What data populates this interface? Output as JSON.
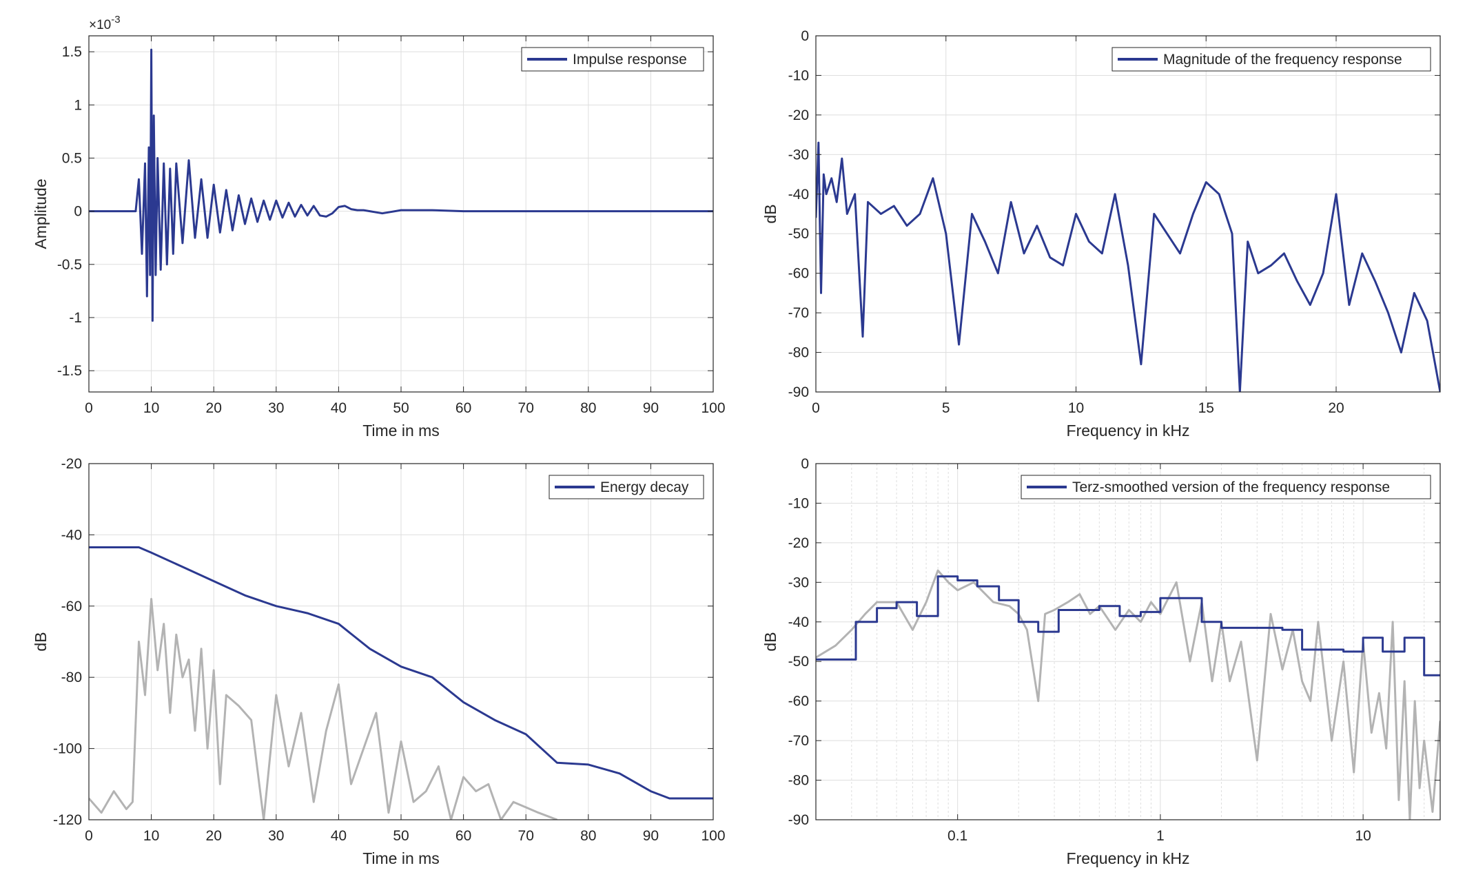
{
  "figure": {
    "colors": {
      "series": "#2b3990",
      "secondary": "#b3b3b3",
      "axis": "#262626",
      "grid": "#dedede"
    }
  },
  "chart_data": [
    {
      "type": "line",
      "title": "",
      "xlabel": "Time in ms",
      "ylabel": "Amplitude",
      "xlim": [
        0,
        100
      ],
      "ylim": [
        -1.7,
        1.65
      ],
      "x_ticks": [
        0,
        10,
        20,
        30,
        40,
        50,
        60,
        70,
        80,
        90,
        100
      ],
      "y_ticks": [
        -1.5,
        -1,
        -0.5,
        0,
        0.5,
        1,
        1.5
      ],
      "y_exponent_label": "×10",
      "y_exponent_power": "-3",
      "legend": {
        "position": "top-right",
        "entries": [
          "Impulse response"
        ]
      },
      "grid": true,
      "series": [
        {
          "name": "Impulse response",
          "x": [
            0,
            7.5,
            8,
            8.5,
            9,
            9.3,
            9.6,
            9.8,
            10,
            10.2,
            10.4,
            10.7,
            11,
            11.5,
            12,
            12.5,
            13,
            13.5,
            14,
            15,
            16,
            17,
            18,
            19,
            20,
            21,
            22,
            23,
            24,
            25,
            26,
            27,
            28,
            29,
            30,
            31,
            32,
            33,
            34,
            35,
            36,
            37,
            38,
            39,
            40,
            41,
            42,
            43,
            44,
            45,
            46,
            47,
            48,
            50,
            55,
            60,
            70,
            100
          ],
          "y": [
            0,
            0,
            0.3,
            -0.4,
            0.45,
            -0.8,
            0.6,
            -0.6,
            1.52,
            -1.03,
            0.9,
            -0.6,
            0.5,
            -0.55,
            0.45,
            -0.5,
            0.4,
            -0.4,
            0.45,
            -0.3,
            0.48,
            -0.25,
            0.3,
            -0.25,
            0.25,
            -0.2,
            0.2,
            -0.18,
            0.15,
            -0.12,
            0.12,
            -0.1,
            0.1,
            -0.08,
            0.1,
            -0.06,
            0.08,
            -0.05,
            0.06,
            -0.04,
            0.05,
            -0.04,
            -0.05,
            -0.02,
            0.04,
            0.05,
            0.02,
            0.01,
            0.01,
            0,
            -0.01,
            -0.02,
            -0.01,
            0.01,
            0.01,
            0,
            0,
            0
          ]
        }
      ]
    },
    {
      "type": "line",
      "title": "",
      "xlabel": "Frequency in kHz",
      "ylabel": "dB",
      "xlim": [
        0,
        24
      ],
      "ylim": [
        -90,
        0
      ],
      "x_ticks": [
        0,
        5,
        10,
        15,
        20
      ],
      "y_ticks": [
        0,
        -10,
        -20,
        -30,
        -40,
        -50,
        -60,
        -70,
        -80,
        -90
      ],
      "legend": {
        "position": "top-right",
        "entries": [
          "Magnitude of the frequency response"
        ]
      },
      "grid": true,
      "series": [
        {
          "name": "Magnitude of the frequency response",
          "x": [
            0,
            0.1,
            0.2,
            0.3,
            0.4,
            0.6,
            0.8,
            1,
            1.2,
            1.5,
            1.8,
            2,
            2.5,
            3,
            3.5,
            4,
            4.5,
            5,
            5.5,
            6,
            6.5,
            7,
            7.5,
            8,
            8.5,
            9,
            9.5,
            10,
            10.5,
            11,
            11.5,
            12,
            12.5,
            13,
            13.5,
            14,
            14.5,
            15,
            15.5,
            16,
            16.3,
            16.6,
            17,
            17.5,
            18,
            18.5,
            19,
            19.5,
            20,
            20.5,
            21,
            21.5,
            22,
            22.5,
            23,
            23.5,
            24
          ],
          "y": [
            -46,
            -27,
            -65,
            -35,
            -40,
            -36,
            -42,
            -31,
            -45,
            -40,
            -76,
            -42,
            -45,
            -43,
            -48,
            -45,
            -36,
            -50,
            -78,
            -45,
            -52,
            -60,
            -42,
            -55,
            -48,
            -56,
            -58,
            -45,
            -52,
            -55,
            -40,
            -58,
            -83,
            -45,
            -50,
            -55,
            -45,
            -37,
            -40,
            -50,
            -90,
            -52,
            -60,
            -58,
            -55,
            -62,
            -68,
            -60,
            -40,
            -68,
            -55,
            -62,
            -70,
            -80,
            -65,
            -72,
            -90
          ]
        }
      ]
    },
    {
      "type": "line",
      "title": "",
      "xlabel": "Time in ms",
      "ylabel": "dB",
      "xlim": [
        0,
        100
      ],
      "ylim": [
        -120,
        -20
      ],
      "x_ticks": [
        0,
        10,
        20,
        30,
        40,
        50,
        60,
        70,
        80,
        90,
        100
      ],
      "y_ticks": [
        -20,
        -40,
        -60,
        -80,
        -100,
        -120
      ],
      "legend": {
        "position": "top-right",
        "entries": [
          "Energy decay"
        ]
      },
      "grid": true,
      "series": [
        {
          "name": "Energy decay",
          "x": [
            0,
            8,
            10,
            15,
            20,
            25,
            30,
            35,
            40,
            45,
            50,
            55,
            60,
            65,
            70,
            75,
            80,
            85,
            90,
            93,
            100
          ],
          "y": [
            -43.5,
            -43.5,
            -45,
            -49,
            -53,
            -57,
            -60,
            -62,
            -65,
            -72,
            -77,
            -80,
            -87,
            -92,
            -96,
            -104,
            -104.5,
            -107,
            -112,
            -114,
            -114
          ]
        },
        {
          "name": "",
          "x": [
            0,
            2,
            4,
            6,
            7,
            8,
            9,
            10,
            11,
            12,
            13,
            14,
            15,
            16,
            17,
            18,
            19,
            20,
            21,
            22,
            24,
            26,
            28,
            30,
            32,
            34,
            36,
            38,
            40,
            42,
            44,
            46,
            48,
            50,
            52,
            54,
            56,
            58,
            60,
            62,
            64,
            66,
            68,
            72,
            75
          ],
          "y": [
            -114,
            -118,
            -112,
            -117,
            -115,
            -70,
            -85,
            -58,
            -78,
            -65,
            -90,
            -68,
            -80,
            -75,
            -95,
            -72,
            -100,
            -78,
            -110,
            -85,
            -88,
            -92,
            -120,
            -85,
            -105,
            -90,
            -115,
            -95,
            -82,
            -110,
            -100,
            -90,
            -118,
            -98,
            -115,
            -112,
            -105,
            -120,
            -108,
            -112,
            -110,
            -120,
            -115,
            -118,
            -120
          ]
        }
      ]
    },
    {
      "type": "line",
      "title": "",
      "xlabel": "Frequency in kHz",
      "ylabel": "dB",
      "x_scale": "log",
      "xlim": [
        0.02,
        24
      ],
      "ylim": [
        -90,
        0
      ],
      "x_ticks": [
        0.1,
        1,
        10
      ],
      "x_tick_labels": [
        "0.1",
        "1",
        "10"
      ],
      "y_ticks": [
        0,
        -10,
        -20,
        -30,
        -40,
        -50,
        -60,
        -70,
        -80,
        -90
      ],
      "legend": {
        "position": "top-right",
        "entries": [
          "Terz-smoothed version of the frequency response"
        ]
      },
      "grid": true,
      "series": [
        {
          "name": "Terz-smoothed version of the frequency response",
          "step": true,
          "x": [
            0.02,
            0.0315,
            0.04,
            0.05,
            0.063,
            0.08,
            0.1,
            0.125,
            0.16,
            0.2,
            0.25,
            0.315,
            0.4,
            0.5,
            0.63,
            0.8,
            1,
            1.25,
            1.6,
            2,
            2.5,
            3.15,
            4,
            5,
            6.3,
            8,
            10,
            12.5,
            16,
            20,
            24
          ],
          "y": [
            -49.5,
            -40,
            -36.5,
            -35,
            -38.5,
            -28.5,
            -29.5,
            -31,
            -34.5,
            -40,
            -42.5,
            -37,
            -37,
            -36,
            -38.5,
            -37.5,
            -34,
            -34,
            -40,
            -41.5,
            -41.5,
            -41.5,
            -42,
            -47,
            -47,
            -47.5,
            -44,
            -47.5,
            -44,
            -53.5,
            -53.5
          ]
        },
        {
          "name": "",
          "x": [
            0.02,
            0.025,
            0.03,
            0.035,
            0.04,
            0.05,
            0.06,
            0.07,
            0.08,
            0.09,
            0.1,
            0.12,
            0.15,
            0.18,
            0.2,
            0.22,
            0.25,
            0.27,
            0.3,
            0.35,
            0.4,
            0.45,
            0.5,
            0.6,
            0.7,
            0.8,
            0.9,
            1,
            1.2,
            1.4,
            1.6,
            1.8,
            2,
            2.2,
            2.5,
            3,
            3.5,
            4,
            4.5,
            5,
            5.5,
            6,
            7,
            8,
            9,
            10,
            11,
            12,
            13,
            14,
            15,
            16,
            17,
            18,
            19,
            20,
            22,
            24
          ],
          "y": [
            -49,
            -46,
            -42,
            -38,
            -35,
            -35,
            -42,
            -35,
            -27,
            -30,
            -32,
            -30,
            -35,
            -36,
            -38,
            -42,
            -60,
            -38,
            -37,
            -35,
            -33,
            -38,
            -36,
            -42,
            -37,
            -40,
            -35,
            -38,
            -30,
            -50,
            -35,
            -55,
            -40,
            -55,
            -45,
            -75,
            -38,
            -52,
            -42,
            -55,
            -60,
            -40,
            -70,
            -50,
            -78,
            -45,
            -68,
            -58,
            -72,
            -40,
            -85,
            -55,
            -90,
            -60,
            -82,
            -70,
            -88,
            -65
          ]
        }
      ]
    }
  ]
}
